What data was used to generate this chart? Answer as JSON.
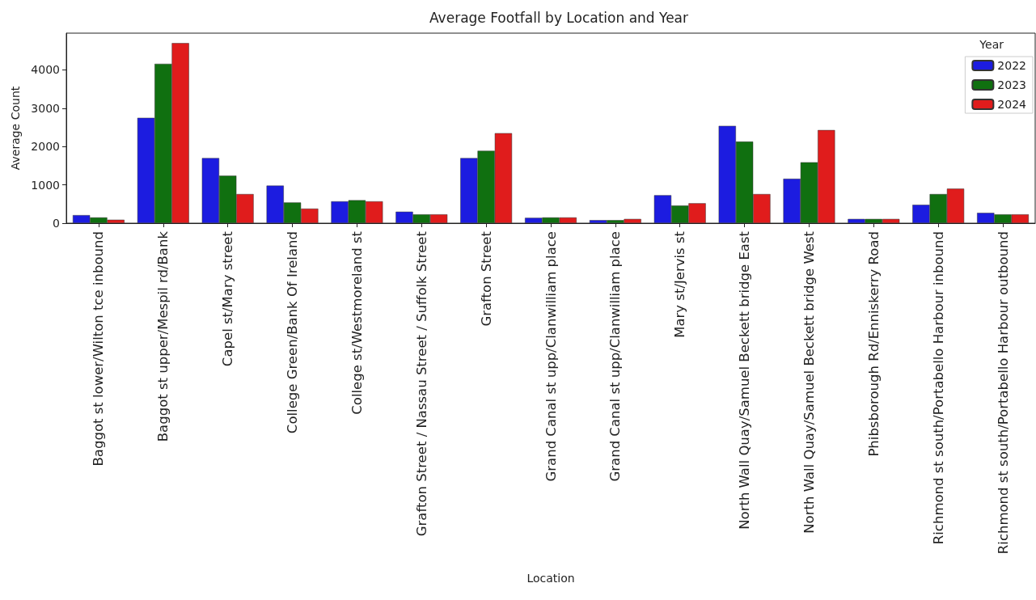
{
  "chart_data": {
    "type": "bar",
    "title": "Average Footfall by Location and Year",
    "xlabel": "Location",
    "ylabel": "Average Count",
    "legend_title": "Year",
    "categories": [
      "Baggot st lower/Wilton tce inbound",
      "Baggot st upper/Mespil rd/Bank",
      "Capel st/Mary street",
      "College Green/Bank Of Ireland",
      "College st/Westmoreland st",
      "Grafton Street / Nassau Street / Suffolk Street",
      "Grafton Street",
      "Grand Canal st upp/Clanwilliam place",
      "Grand Canal st upp/Clanwilliam place",
      "Mary st/Jervis st",
      "North Wall Quay/Samuel Beckett bridge East",
      "North Wall Quay/Samuel Beckett bridge West",
      "Phibsborough Rd/Enniskerry Road",
      "Richmond st south/Portabello Harbour inbound",
      "Richmond st south/Portabello Harbour outbound"
    ],
    "series": [
      {
        "name": "2022",
        "color": "#1c1ce0",
        "values": [
          210,
          2750,
          1700,
          980,
          570,
          300,
          1700,
          140,
          80,
          730,
          2540,
          1160,
          110,
          480,
          270
        ]
      },
      {
        "name": "2023",
        "color": "#107010",
        "values": [
          150,
          4160,
          1240,
          540,
          600,
          230,
          1890,
          150,
          80,
          460,
          2130,
          1590,
          110,
          760,
          230
        ]
      },
      {
        "name": "2024",
        "color": "#e01c1c",
        "values": [
          90,
          4700,
          760,
          380,
          570,
          230,
          2350,
          150,
          110,
          520,
          760,
          2430,
          110,
          900,
          230
        ]
      }
    ],
    "ylim": [
      0,
      4960
    ],
    "yticks": [
      0,
      1000,
      2000,
      3000,
      4000
    ],
    "grid": false,
    "legend": "top right"
  }
}
